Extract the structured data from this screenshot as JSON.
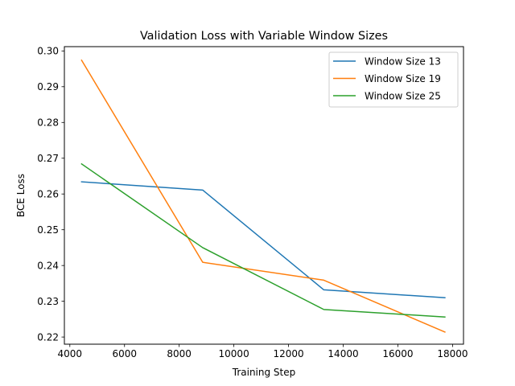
{
  "chart_data": {
    "type": "line",
    "title": "Validation Loss with Variable Window Sizes",
    "xlabel": "Training Step",
    "ylabel": "BCE Loss",
    "xlim": [
      3800,
      18400
    ],
    "ylim": [
      0.218,
      0.3012
    ],
    "xticks": [
      4000,
      6000,
      8000,
      10000,
      12000,
      14000,
      16000,
      18000
    ],
    "yticks": [
      0.22,
      0.23,
      0.24,
      0.25,
      0.26,
      0.27,
      0.28,
      0.29,
      0.3
    ],
    "xtick_labels": [
      "4000",
      "6000",
      "8000",
      "10000",
      "12000",
      "14000",
      "16000",
      "18000"
    ],
    "ytick_labels": [
      "0.22",
      "0.23",
      "0.24",
      "0.25",
      "0.26",
      "0.27",
      "0.28",
      "0.29",
      "0.30"
    ],
    "x": [
      4430,
      8860,
      13290,
      17720
    ],
    "legend_position": "upper right",
    "grid": false,
    "series": [
      {
        "name": "Window Size 13",
        "color": "#1f77b4",
        "values": [
          0.2634,
          0.2611,
          0.2332,
          0.231
        ]
      },
      {
        "name": "Window Size 19",
        "color": "#ff7f0e",
        "values": [
          0.2974,
          0.2409,
          0.2359,
          0.2214
        ]
      },
      {
        "name": "Window Size 25",
        "color": "#2ca02c",
        "values": [
          0.2684,
          0.245,
          0.2277,
          0.2256
        ]
      }
    ]
  }
}
